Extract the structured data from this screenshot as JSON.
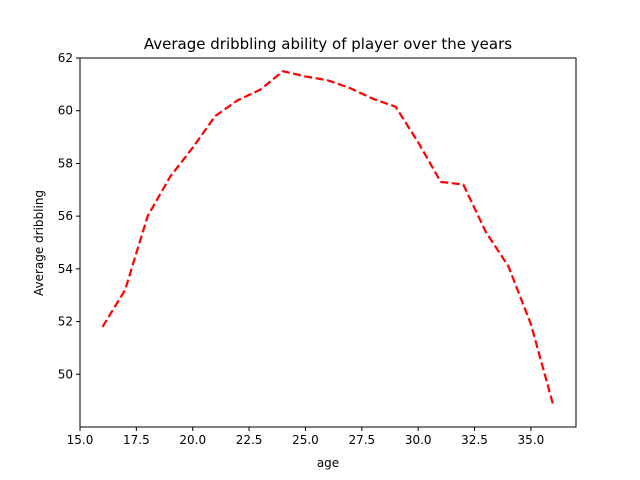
{
  "chart_data": {
    "type": "line",
    "title": "Average dribbling ability of player over the years",
    "xlabel": "age",
    "ylabel": "Average dribbling",
    "xlim": [
      15.0,
      37.0
    ],
    "ylim": [
      48.0,
      62.0
    ],
    "x_ticks": [
      15.0,
      17.5,
      20.0,
      22.5,
      25.0,
      27.5,
      30.0,
      32.5,
      35.0
    ],
    "x_tick_labels": [
      "15.0",
      "17.5",
      "20.0",
      "22.5",
      "25.0",
      "27.5",
      "30.0",
      "32.5",
      "35.0"
    ],
    "y_ticks": [
      50,
      52,
      54,
      56,
      58,
      60,
      62
    ],
    "y_tick_labels": [
      "50",
      "52",
      "54",
      "56",
      "58",
      "60",
      "62"
    ],
    "grid": false,
    "legend": "none",
    "series": [
      {
        "color": "#ff0000",
        "line_style": "dashed",
        "x": [
          16,
          17,
          18,
          19,
          20,
          21,
          22,
          23,
          24,
          25,
          26,
          27,
          28,
          29,
          30,
          31,
          32,
          33,
          34,
          35,
          36
        ],
        "y": [
          51.8,
          53.2,
          56.0,
          57.5,
          58.6,
          59.8,
          60.4,
          60.8,
          61.5,
          61.3,
          61.15,
          60.85,
          60.45,
          60.15,
          58.8,
          57.3,
          57.2,
          55.4,
          54.1,
          51.9,
          48.8
        ]
      }
    ]
  }
}
